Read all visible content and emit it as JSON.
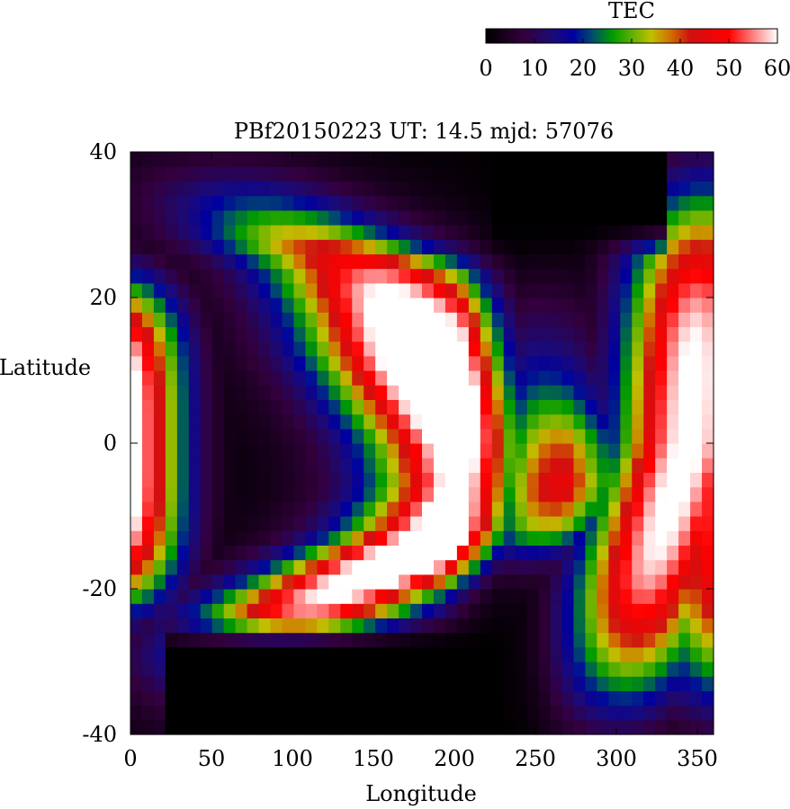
{
  "chart_data": {
    "type": "heatmap",
    "title": "PBf20150223  UT: 14.5  mjd: 57076",
    "xlabel": "Longitude",
    "ylabel": "Latitude",
    "xlim": [
      0,
      360
    ],
    "ylim": [
      -40,
      40
    ],
    "x_ticks": [
      "0",
      "50",
      "100",
      "150",
      "200",
      "250",
      "300",
      "350"
    ],
    "y_ticks": [
      "40",
      "20",
      "0",
      "-20",
      "-40"
    ],
    "colorbar": {
      "label": "TEC",
      "range": [
        0,
        60
      ],
      "ticks": [
        "0",
        "10",
        "20",
        "30",
        "40",
        "50",
        "60"
      ],
      "colormap": [
        {
          "v": 0,
          "color": "#000000"
        },
        {
          "v": 8,
          "color": "#33003d"
        },
        {
          "v": 14,
          "color": "#1a0a7a"
        },
        {
          "v": 18,
          "color": "#0000a0"
        },
        {
          "v": 22,
          "color": "#004f6a"
        },
        {
          "v": 26,
          "color": "#009a00"
        },
        {
          "v": 30,
          "color": "#5cb000"
        },
        {
          "v": 34,
          "color": "#c0c000"
        },
        {
          "v": 38,
          "color": "#d07000"
        },
        {
          "v": 42,
          "color": "#d01010"
        },
        {
          "v": 50,
          "color": "#ff0000"
        },
        {
          "v": 55,
          "color": "#ff8080"
        },
        {
          "v": 60,
          "color": "#ffffff"
        }
      ]
    },
    "grid": {
      "lon_step": 7.2,
      "lat_step": 2,
      "features": [
        {
          "kind": "crest",
          "profile": [
            [
              -40,
              70
            ],
            [
              -30,
              78
            ],
            [
              -22,
              115
            ],
            [
              -16,
              170
            ],
            [
              -12,
              205
            ],
            [
              -6,
              225
            ],
            [
              0,
              218
            ],
            [
              6,
              200
            ],
            [
              12,
              183
            ],
            [
              18,
              170
            ],
            [
              24,
              148
            ],
            [
              28,
              110
            ],
            [
              34,
              75
            ],
            [
              40,
              55
            ]
          ],
          "amp": 66,
          "width": 62,
          "decay": 28
        },
        {
          "kind": "crest",
          "profile": [
            [
              -40,
              0
            ],
            [
              -20,
              0
            ],
            [
              0,
              0
            ],
            [
              20,
              0
            ],
            [
              40,
              0
            ]
          ],
          "amp": 40,
          "width": 32,
          "decay": 30
        },
        {
          "kind": "trough",
          "profile": [
            [
              -40,
              230
            ],
            [
              -20,
              228
            ],
            [
              0,
              238
            ],
            [
              20,
              240
            ],
            [
              40,
              240
            ]
          ],
          "amp": 0,
          "width": 22,
          "decay": 0
        },
        {
          "kind": "crest",
          "profile": [
            [
              -40,
              300
            ],
            [
              -20,
              318
            ],
            [
              0,
              345
            ],
            [
              20,
              350
            ],
            [
              40,
              355
            ]
          ],
          "amp": 62,
          "width": 44,
          "decay": 30
        }
      ]
    }
  }
}
